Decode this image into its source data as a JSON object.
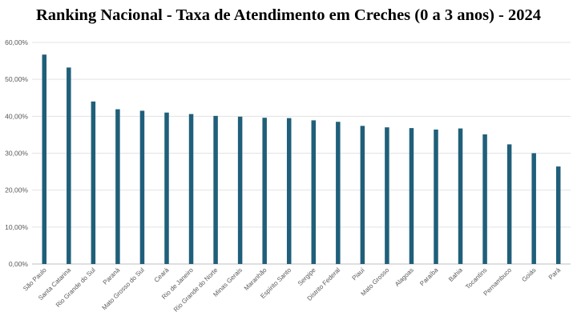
{
  "chart_data": {
    "type": "bar",
    "title": "Ranking Nacional - Taxa de Atendimento em Creches (0 a 3 anos) - 2024",
    "xlabel": "",
    "ylabel": "",
    "ylim": [
      0,
      60
    ],
    "yticks": [
      0,
      10,
      20,
      30,
      40,
      50,
      60
    ],
    "ytick_labels": [
      "0,00%",
      "10,00%",
      "20,00%",
      "30,00%",
      "40,00%",
      "50,00%",
      "60,00%"
    ],
    "grid": true,
    "legend": "none",
    "bar_color": "#1F5F7A",
    "categories": [
      "São Paulo",
      "Santa Catarina",
      "Rio Grande do Sul",
      "Paraná",
      "Mato Grosso do Sul",
      "Ceará",
      "Rio de Janeiro",
      "Rio Grande do Norte",
      "Minas Gerais",
      "Maranhão",
      "Espírito Santo",
      "Sergipe",
      "Distrito Federal",
      "Piauí",
      "Mato Grosso",
      "Alagoas",
      "Paraíba",
      "Bahia",
      "Tocantins",
      "Pernambuco",
      "Goiás",
      "Pará"
    ],
    "values": [
      56.7,
      53.2,
      44.0,
      41.9,
      41.5,
      41.0,
      40.6,
      40.1,
      39.9,
      39.6,
      39.5,
      38.9,
      38.5,
      37.4,
      37.0,
      36.8,
      36.4,
      36.7,
      35.1,
      32.4,
      30.0,
      26.4
    ]
  }
}
